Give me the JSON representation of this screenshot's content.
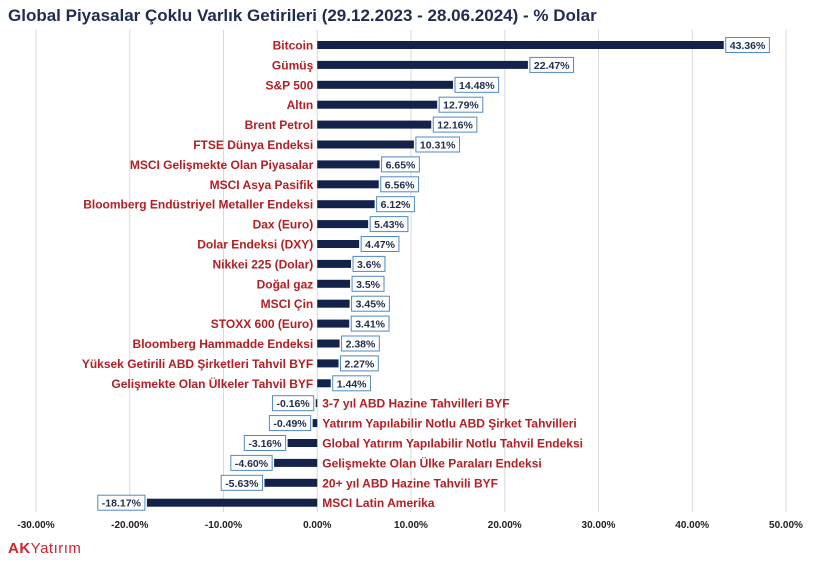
{
  "title": "Global Piyasalar Çoklu Varlık Getirileri (29.12.2023 - 28.06.2024) - % Dolar",
  "brand": {
    "ak": "AK",
    "rest": "Yatırım"
  },
  "colors": {
    "bar": "#13224a",
    "label": "#b21f24",
    "value_border": "#4f8ac0"
  },
  "chart_data": {
    "type": "bar",
    "orientation": "horizontal",
    "title": "Global Piyasalar Çoklu Varlık Getirileri (29.12.2023 - 28.06.2024) - % Dolar",
    "xlim": [
      -30,
      50
    ],
    "x_ticks": [
      -30,
      -20,
      -10,
      0,
      10,
      20,
      30,
      40,
      50
    ],
    "x_tick_labels": [
      "-30.00%",
      "-20.00%",
      "-10.00%",
      "0.00%",
      "10.00%",
      "20.00%",
      "30.00%",
      "40.00%",
      "50.00%"
    ],
    "grid": "vertical",
    "categories": [
      "Bitcoin",
      "Gümüş",
      "S&P 500",
      "Altın",
      "Brent Petrol",
      "FTSE Dünya Endeksi",
      "MSCI Gelişmekte Olan Piyasalar",
      "MSCI Asya Pasifik",
      "Bloomberg Endüstriyel Metaller Endeksi",
      "Dax (Euro)",
      "Dolar Endeksi (DXY)",
      "Nikkei 225 (Dolar)",
      "Doğal gaz",
      "MSCI Çin",
      "STOXX 600 (Euro)",
      "Bloomberg Hammadde Endeksi",
      "Yüksek Getirili ABD Şirketleri Tahvil BYF",
      "Gelişmekte Olan Ülkeler Tahvil BYF",
      "3-7 yıl ABD Hazine Tahvilleri BYF",
      "Yatırım Yapılabilir Notlu  ABD Şirket Tahvilleri",
      "Global Yatırım Yapılabilir Notlu Tahvil Endeksi",
      "Gelişmekte Olan Ülke Paraları Endeksi",
      "20+ yıl ABD Hazine Tahvili BYF",
      "MSCI Latin Amerika"
    ],
    "values": [
      43.36,
      22.47,
      14.48,
      12.79,
      12.16,
      10.31,
      6.65,
      6.56,
      6.12,
      5.43,
      4.47,
      3.6,
      3.5,
      3.45,
      3.41,
      2.38,
      2.27,
      1.44,
      -0.16,
      -0.49,
      -3.16,
      -4.6,
      -5.63,
      -18.17
    ],
    "value_labels": [
      "43.36%",
      "22.47%",
      "14.48%",
      "12.79%",
      "12.16%",
      "10.31%",
      "6.65%",
      "6.56%",
      "6.12%",
      "5.43%",
      "4.47%",
      "3.6%",
      "3.5%",
      "3.45%",
      "3.41%",
      "2.38%",
      "2.27%",
      "1.44%",
      "-0.16%",
      "-0.49%",
      "-3.16%",
      "-4.60%",
      "-5.63%",
      "-18.17%"
    ]
  }
}
